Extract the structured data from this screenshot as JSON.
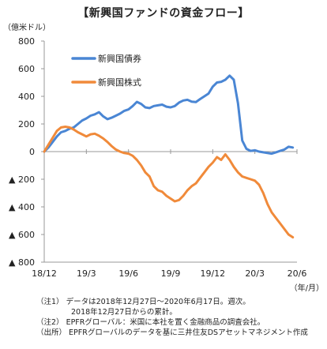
{
  "chart_data": {
    "type": "line",
    "title": "【新興国ファンドの資金フロー】",
    "ylabel": "（億米ドル）",
    "xlabel": "（年/月）",
    "ylim": [
      -800,
      800
    ],
    "yticks": [
      800,
      600,
      400,
      200,
      0,
      -200,
      -400,
      -600,
      -800
    ],
    "ytick_labels": [
      "800",
      "600",
      "400",
      "200",
      "0",
      "▲ 200",
      "▲ 400",
      "▲ 600",
      "▲ 800"
    ],
    "xlim": [
      0,
      18
    ],
    "xticks": [
      0,
      3,
      6,
      9,
      12,
      15,
      18
    ],
    "xtick_labels": [
      "18/12",
      "19/3",
      "19/6",
      "19/9",
      "19/12",
      "20/3",
      "20/6"
    ],
    "legend_position": "top-left",
    "series": [
      {
        "name": "新興国債券",
        "color": "#4a86d4",
        "x": [
          0,
          0.3,
          0.6,
          0.9,
          1.2,
          1.5,
          1.8,
          2.1,
          2.4,
          2.7,
          3.0,
          3.3,
          3.6,
          3.9,
          4.2,
          4.5,
          4.8,
          5.1,
          5.4,
          5.7,
          6.0,
          6.3,
          6.6,
          6.9,
          7.2,
          7.5,
          7.8,
          8.1,
          8.4,
          8.7,
          9.0,
          9.3,
          9.6,
          9.9,
          10.2,
          10.5,
          10.8,
          11.1,
          11.4,
          11.7,
          12.0,
          12.3,
          12.6,
          12.9,
          13.2,
          13.5,
          13.8,
          14.1,
          14.4,
          14.7,
          15.0,
          15.3,
          15.6,
          15.9,
          16.2,
          16.5,
          16.8,
          17.1,
          17.4,
          17.7
        ],
        "values": [
          0,
          30,
          70,
          110,
          140,
          150,
          165,
          175,
          200,
          225,
          240,
          260,
          270,
          285,
          255,
          235,
          245,
          260,
          275,
          295,
          305,
          330,
          360,
          345,
          320,
          315,
          330,
          335,
          340,
          325,
          320,
          330,
          355,
          370,
          375,
          362,
          358,
          380,
          400,
          420,
          470,
          500,
          505,
          520,
          550,
          520,
          350,
          80,
          20,
          5,
          10,
          0,
          -5,
          -10,
          -15,
          -5,
          5,
          15,
          35,
          30
        ]
      },
      {
        "name": "新興国株式",
        "color": "#f08a3a",
        "x": [
          0,
          0.3,
          0.6,
          0.9,
          1.2,
          1.5,
          1.8,
          2.1,
          2.4,
          2.7,
          3.0,
          3.3,
          3.6,
          3.9,
          4.2,
          4.5,
          4.8,
          5.1,
          5.4,
          5.7,
          6.0,
          6.3,
          6.6,
          6.9,
          7.2,
          7.5,
          7.8,
          8.1,
          8.4,
          8.7,
          9.0,
          9.3,
          9.6,
          9.9,
          10.2,
          10.5,
          10.8,
          11.1,
          11.4,
          11.7,
          12.0,
          12.3,
          12.6,
          12.9,
          13.2,
          13.5,
          13.8,
          14.1,
          14.4,
          14.7,
          15.0,
          15.3,
          15.6,
          15.9,
          16.2,
          16.5,
          16.8,
          17.1,
          17.4,
          17.7
        ],
        "values": [
          0,
          50,
          100,
          150,
          175,
          180,
          175,
          160,
          140,
          125,
          110,
          125,
          130,
          115,
          95,
          70,
          40,
          15,
          0,
          -10,
          -15,
          -30,
          -60,
          -100,
          -150,
          -180,
          -250,
          -280,
          -290,
          -320,
          -340,
          -360,
          -350,
          -320,
          -280,
          -250,
          -230,
          -190,
          -150,
          -110,
          -80,
          -40,
          -60,
          -20,
          -60,
          -110,
          -150,
          -180,
          -190,
          -200,
          -210,
          -240,
          -300,
          -380,
          -440,
          -480,
          -520,
          -560,
          -600,
          -620
        ]
      }
    ],
    "notes": {
      "n1": "（注1） データは2018年12月27日～2020年6月17日。週次。",
      "n1b": "2018年12月27日からの累計。",
      "n2": "（注2） EPFRグローバル：米国に本社を置く金融商品の調査会社。",
      "src": "（出所） EPFRグローバルのデータを基に三井住友DSアセットマネジメント作成"
    }
  }
}
